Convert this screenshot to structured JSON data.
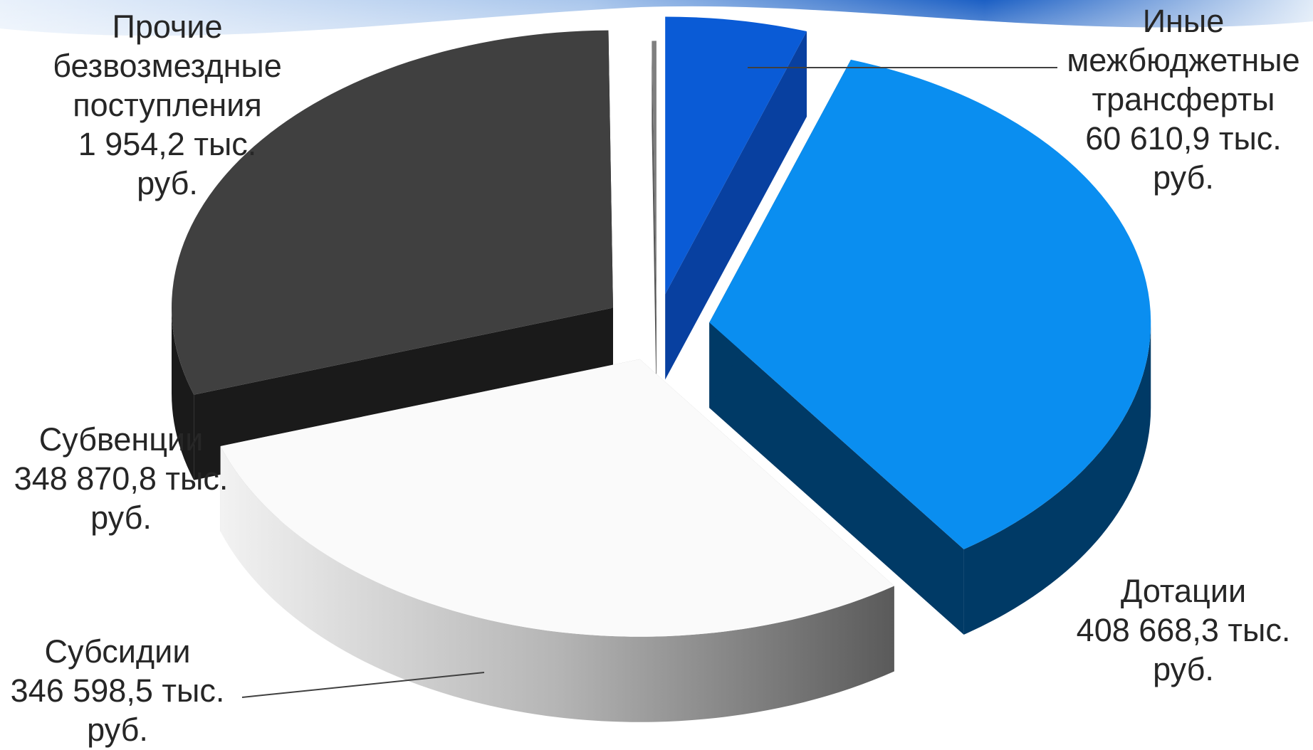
{
  "chart_data": {
    "type": "pie",
    "three_d": true,
    "title": "",
    "unit": "тыс. руб.",
    "slices": [
      {
        "name": "Иные межбюджетные трансферты",
        "label_lines": [
          "Иные",
          "межбюджетные",
          "трансферты"
        ],
        "value": 60610.9,
        "value_text": "60 610,9 тыс.",
        "unit_text": "руб.",
        "color": "#0a5bd6",
        "side_color": "#0840a0"
      },
      {
        "name": "Дотации",
        "label_lines": [
          "Дотации"
        ],
        "value": 408668.3,
        "value_text": "408 668,3 тыс.",
        "unit_text": "руб.",
        "color": "#0a8ef0",
        "side_color": "#003a66"
      },
      {
        "name": "Субсидии",
        "label_lines": [
          "Субсидии"
        ],
        "value": 346598.5,
        "value_text": "346 598,5 тыс.",
        "unit_text": "руб.",
        "color": "#fafafa",
        "side_color": "#9e9e9e"
      },
      {
        "name": "Субвенции",
        "label_lines": [
          "Субвенции"
        ],
        "value": 348870.8,
        "value_text": "348 870,8 тыс.",
        "unit_text": "руб.",
        "color": "#404040",
        "side_color": "#1a1a1a"
      },
      {
        "name": "Прочие безвозмездные поступления",
        "label_lines": [
          "Прочие",
          "безвозмездные",
          "поступления"
        ],
        "value": 1954.2,
        "value_text": "1 954,2 тыс.",
        "unit_text": "руб.",
        "color": "#7f7f7f",
        "side_color": "#555555"
      }
    ],
    "legend": "none"
  },
  "background": {
    "accent": "#1b5fc4",
    "light": "#dbe8f7"
  }
}
